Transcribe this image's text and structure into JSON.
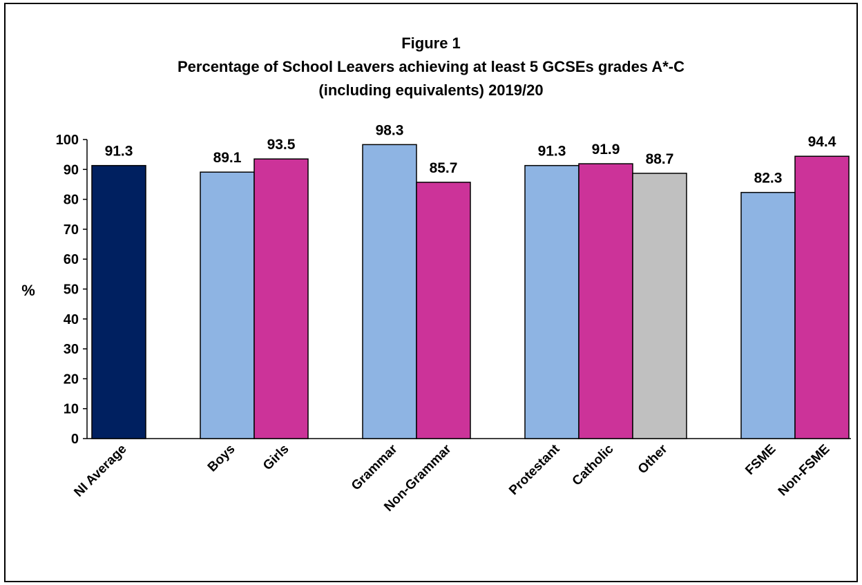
{
  "chart_data": {
    "type": "bar",
    "title": "Figure 1",
    "subtitle": "Percentage of School Leavers achieving at least 5 GCSEs grades A*-C",
    "subtitle2": "(including equivalents) 2019/20",
    "ylabel": "%",
    "xlabel": "",
    "ylim": [
      0,
      100
    ],
    "yticks": [
      0,
      10,
      20,
      30,
      40,
      50,
      60,
      70,
      80,
      90,
      100
    ],
    "grid": false,
    "legend": "none",
    "categories": [
      "NI Average",
      "Boys",
      "Girls",
      "Grammar",
      "Non-Grammar",
      "Protestant",
      "Catholic",
      "Other",
      "FSME",
      "Non-FSME"
    ],
    "values": [
      91.3,
      89.1,
      93.5,
      98.3,
      85.7,
      91.3,
      91.9,
      88.7,
      82.3,
      94.4
    ],
    "value_labels": [
      "91.3",
      "89.1",
      "93.5",
      "98.3",
      "85.7",
      "91.3",
      "91.9",
      "88.7",
      "82.3",
      "94.4"
    ],
    "colors": [
      "#002060",
      "#8EB4E3",
      "#CC3399",
      "#8EB4E3",
      "#CC3399",
      "#8EB4E3",
      "#CC3399",
      "#C0C0C0",
      "#8EB4E3",
      "#CC3399"
    ]
  }
}
